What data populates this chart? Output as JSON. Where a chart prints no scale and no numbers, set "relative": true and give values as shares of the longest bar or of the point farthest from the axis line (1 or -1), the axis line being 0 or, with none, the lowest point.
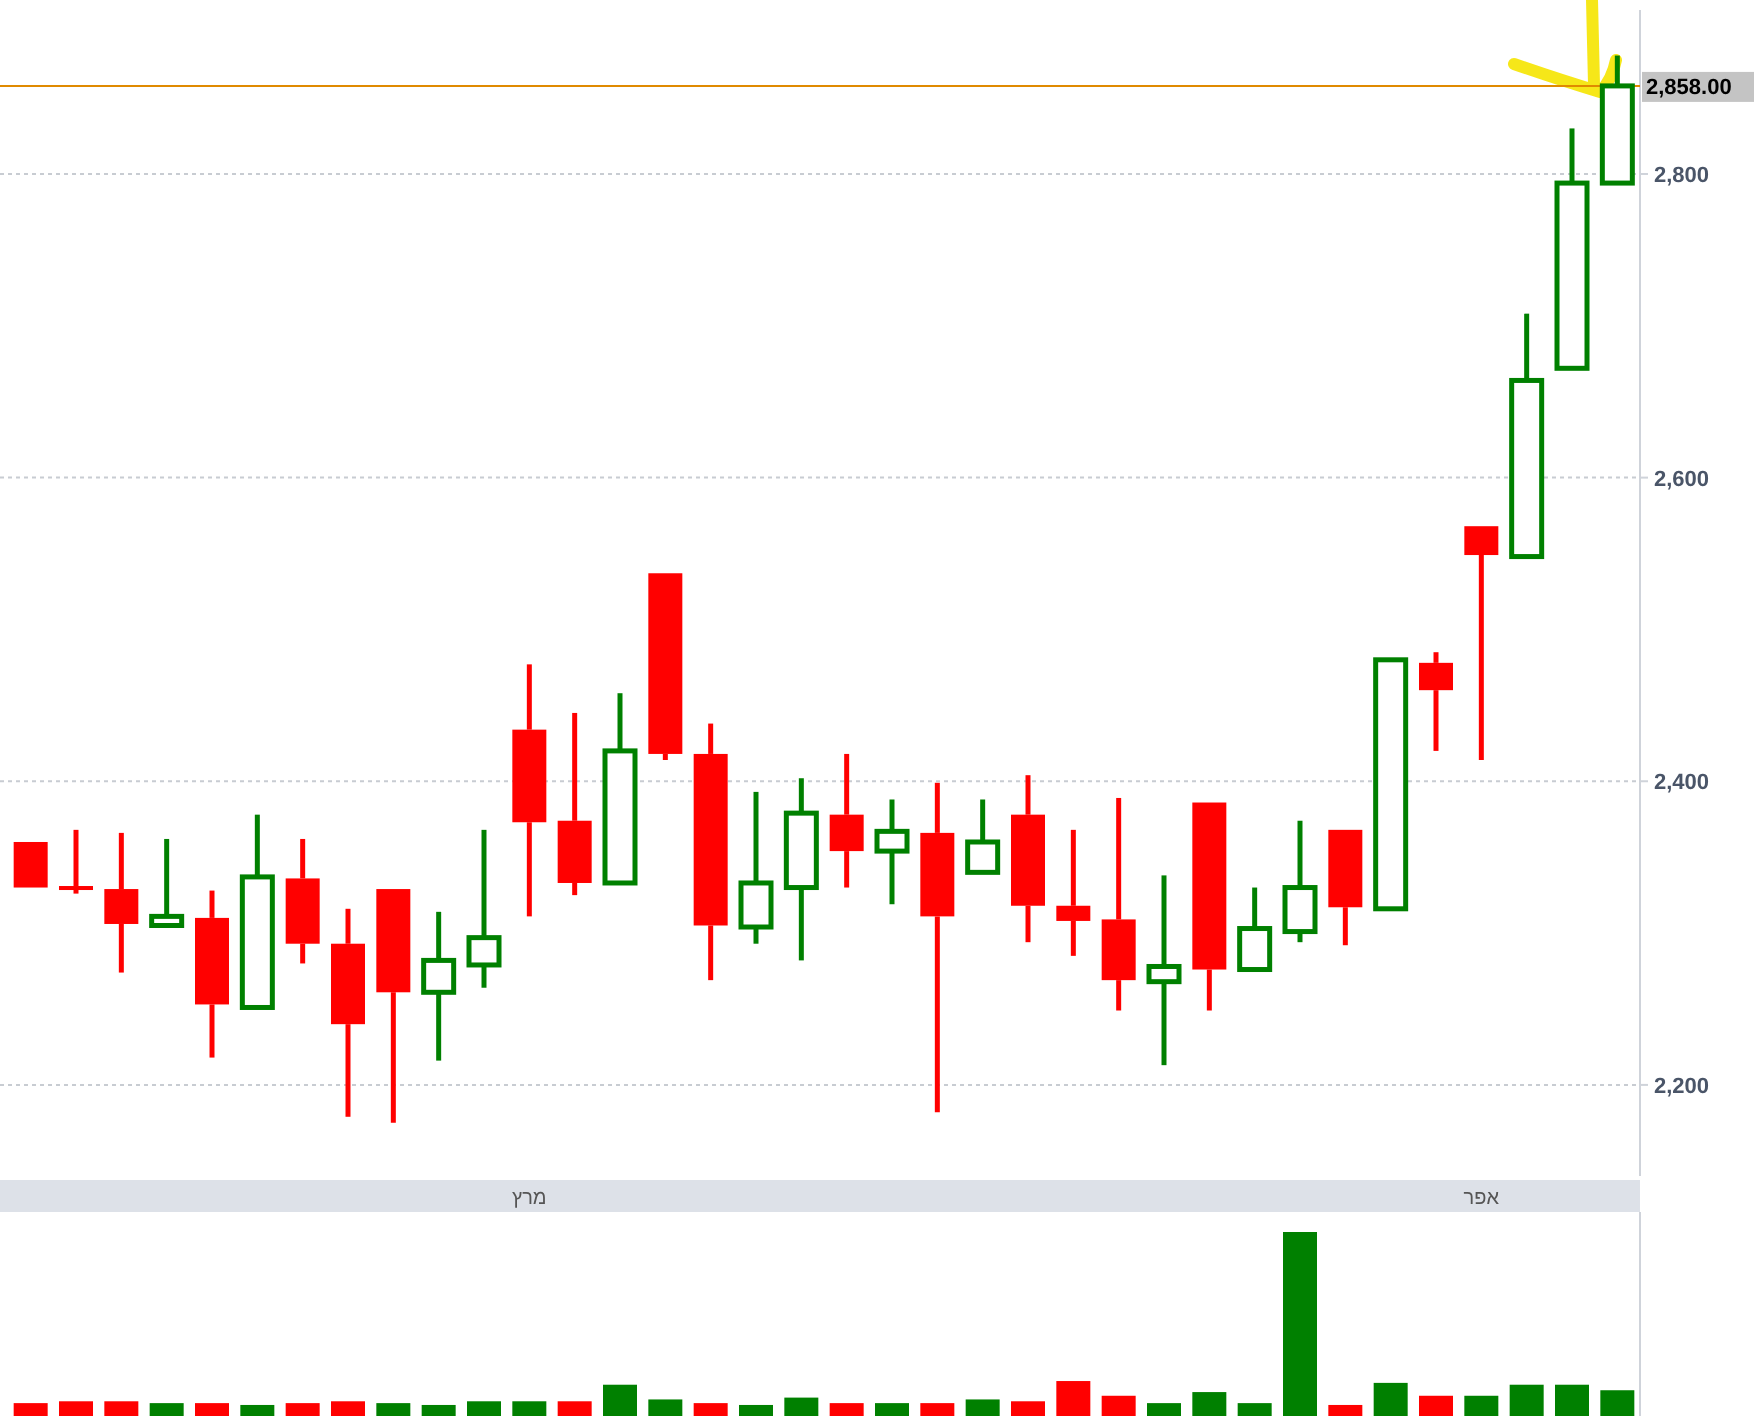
{
  "chart_data": [
    {
      "type": "candlestick",
      "categories": [
        null,
        null,
        null,
        null,
        null,
        null,
        null,
        null,
        null,
        null,
        null,
        "מרץ",
        null,
        null,
        null,
        null,
        null,
        null,
        null,
        null,
        null,
        null,
        null,
        null,
        null,
        null,
        null,
        null,
        null,
        null,
        null,
        null,
        "אפר",
        null,
        null,
        null
      ],
      "ohlc": [
        [
          2360,
          2360,
          2330,
          2330
        ],
        [
          2331,
          2368,
          2326,
          2329
        ],
        [
          2329,
          2366,
          2274,
          2306
        ],
        [
          2305,
          2362,
          2304,
          2311
        ],
        [
          2310,
          2328,
          2218,
          2253
        ],
        [
          2251,
          2378,
          2251,
          2337
        ],
        [
          2336,
          2362,
          2280,
          2293
        ],
        [
          2293,
          2316,
          2179,
          2240
        ],
        [
          2329,
          2329,
          2175,
          2261
        ],
        [
          2261,
          2314,
          2216,
          2282
        ],
        [
          2279,
          2368,
          2264,
          2297
        ],
        [
          2434,
          2477,
          2311,
          2373
        ],
        [
          2374,
          2445,
          2325,
          2333
        ],
        [
          2333,
          2458,
          2333,
          2420
        ],
        [
          2537,
          2537,
          2414,
          2418
        ],
        [
          2418,
          2438,
          2269,
          2305
        ],
        [
          2304,
          2393,
          2293,
          2333
        ],
        [
          2330,
          2402,
          2282,
          2379
        ],
        [
          2378,
          2418,
          2330,
          2354
        ],
        [
          2354,
          2388,
          2319,
          2367
        ],
        [
          2366,
          2399,
          2182,
          2311
        ],
        [
          2340,
          2388,
          2340,
          2360
        ],
        [
          2378,
          2404,
          2294,
          2318
        ],
        [
          2318,
          2368,
          2285,
          2308
        ],
        [
          2309,
          2389,
          2249,
          2269
        ],
        [
          2268,
          2338,
          2213,
          2278
        ],
        [
          2386,
          2386,
          2249,
          2276
        ],
        [
          2276,
          2330,
          2276,
          2303
        ],
        [
          2301,
          2374,
          2294,
          2330
        ],
        [
          2368,
          2368,
          2292,
          2317
        ],
        [
          2316,
          2480,
          2316,
          2480
        ],
        [
          2478,
          2485,
          2420,
          2460
        ],
        [
          2568,
          2568,
          2414,
          2549
        ],
        [
          2548,
          2708,
          2548,
          2664
        ],
        [
          2672,
          2830,
          2672,
          2794
        ],
        [
          2794,
          2878,
          2794,
          2858
        ]
      ],
      "colors": [
        "#ff0000",
        "#ff0000",
        "#ff0000",
        "#008000",
        "#ff0000",
        "#008000",
        "#ff0000",
        "#ff0000",
        "#ff0000",
        "#008000",
        "#008000",
        "#ff0000",
        "#ff0000",
        "#008000",
        "#ff0000",
        "#ff0000",
        "#008000",
        "#008000",
        "#ff0000",
        "#008000",
        "#ff0000",
        "#008000",
        "#ff0000",
        "#ff0000",
        "#ff0000",
        "#008000",
        "#ff0000",
        "#008000",
        "#008000",
        "#ff0000",
        "#008000",
        "#ff0000",
        "#ff0000",
        "#008000",
        "#008000",
        "#008000"
      ],
      "ylim": [
        2140,
        2908
      ],
      "yticks": [
        {
          "value": 2200,
          "label": "2,200"
        },
        {
          "value": 2400,
          "label": "2,400"
        },
        {
          "value": 2600,
          "label": "2,600"
        },
        {
          "value": 2800,
          "label": "2,800"
        }
      ],
      "grid": "y",
      "ref_lines": [
        {
          "axis": "y",
          "value": 2858,
          "label": "2,858.00",
          "color": "#e08a00"
        }
      ]
    },
    {
      "type": "bar",
      "relative": true,
      "categories": [
        null,
        null,
        null,
        null,
        null,
        null,
        null,
        null,
        null,
        null,
        null,
        null,
        null,
        null,
        null,
        null,
        null,
        null,
        null,
        null,
        null,
        null,
        null,
        null,
        null,
        null,
        null,
        null,
        null,
        null,
        null,
        null,
        null,
        null,
        null,
        null
      ],
      "values": [
        0.07,
        0.08,
        0.08,
        0.07,
        0.07,
        0.06,
        0.07,
        0.08,
        0.07,
        0.06,
        0.08,
        0.08,
        0.08,
        0.17,
        0.09,
        0.07,
        0.06,
        0.1,
        0.07,
        0.07,
        0.07,
        0.09,
        0.08,
        0.19,
        0.11,
        0.07,
        0.13,
        0.07,
        1,
        0.06,
        0.18,
        0.11,
        0.11,
        0.17,
        0.17,
        0.14
      ],
      "colors": [
        "#ff0000",
        "#ff0000",
        "#ff0000",
        "#008000",
        "#ff0000",
        "#008000",
        "#ff0000",
        "#ff0000",
        "#008000",
        "#008000",
        "#008000",
        "#008000",
        "#ff0000",
        "#008000",
        "#008000",
        "#ff0000",
        "#008000",
        "#008000",
        "#ff0000",
        "#008000",
        "#ff0000",
        "#008000",
        "#ff0000",
        "#ff0000",
        "#ff0000",
        "#008000",
        "#008000",
        "#008000",
        "#008000",
        "#ff0000",
        "#008000",
        "#ff0000",
        "#008000",
        "#008000",
        "#008000",
        "#008000"
      ]
    }
  ]
}
